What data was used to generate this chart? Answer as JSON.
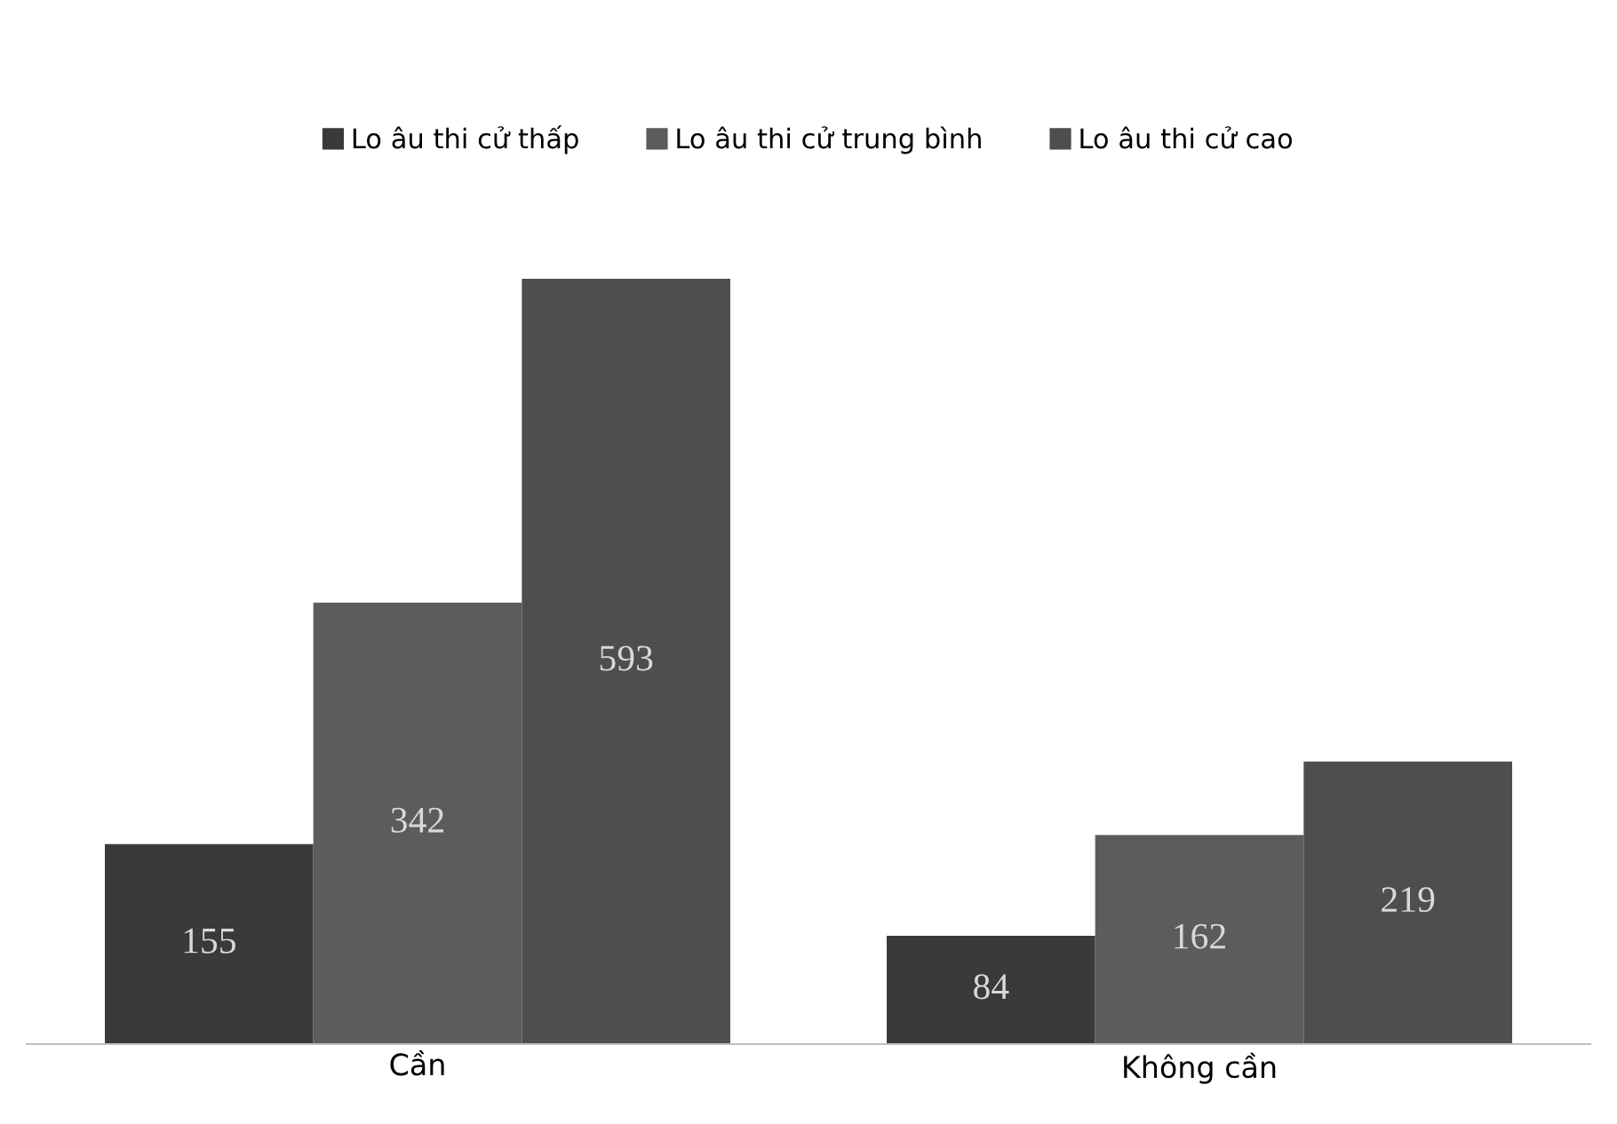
{
  "chart_data": {
    "type": "bar",
    "categories": [
      "Cần",
      "Không cần"
    ],
    "series": [
      {
        "name": "Lo âu thi cử thấp",
        "color": "#3a3a3a",
        "values": [
          155,
          84
        ]
      },
      {
        "name": "Lo âu thi cử trung bình",
        "color": "#5c5c5c",
        "values": [
          342,
          162
        ]
      },
      {
        "name": "Lo âu thi cử cao",
        "color": "#4e4e4e",
        "values": [
          593,
          219
        ]
      }
    ],
    "data_labels": true,
    "legend": "top",
    "grid": false
  }
}
